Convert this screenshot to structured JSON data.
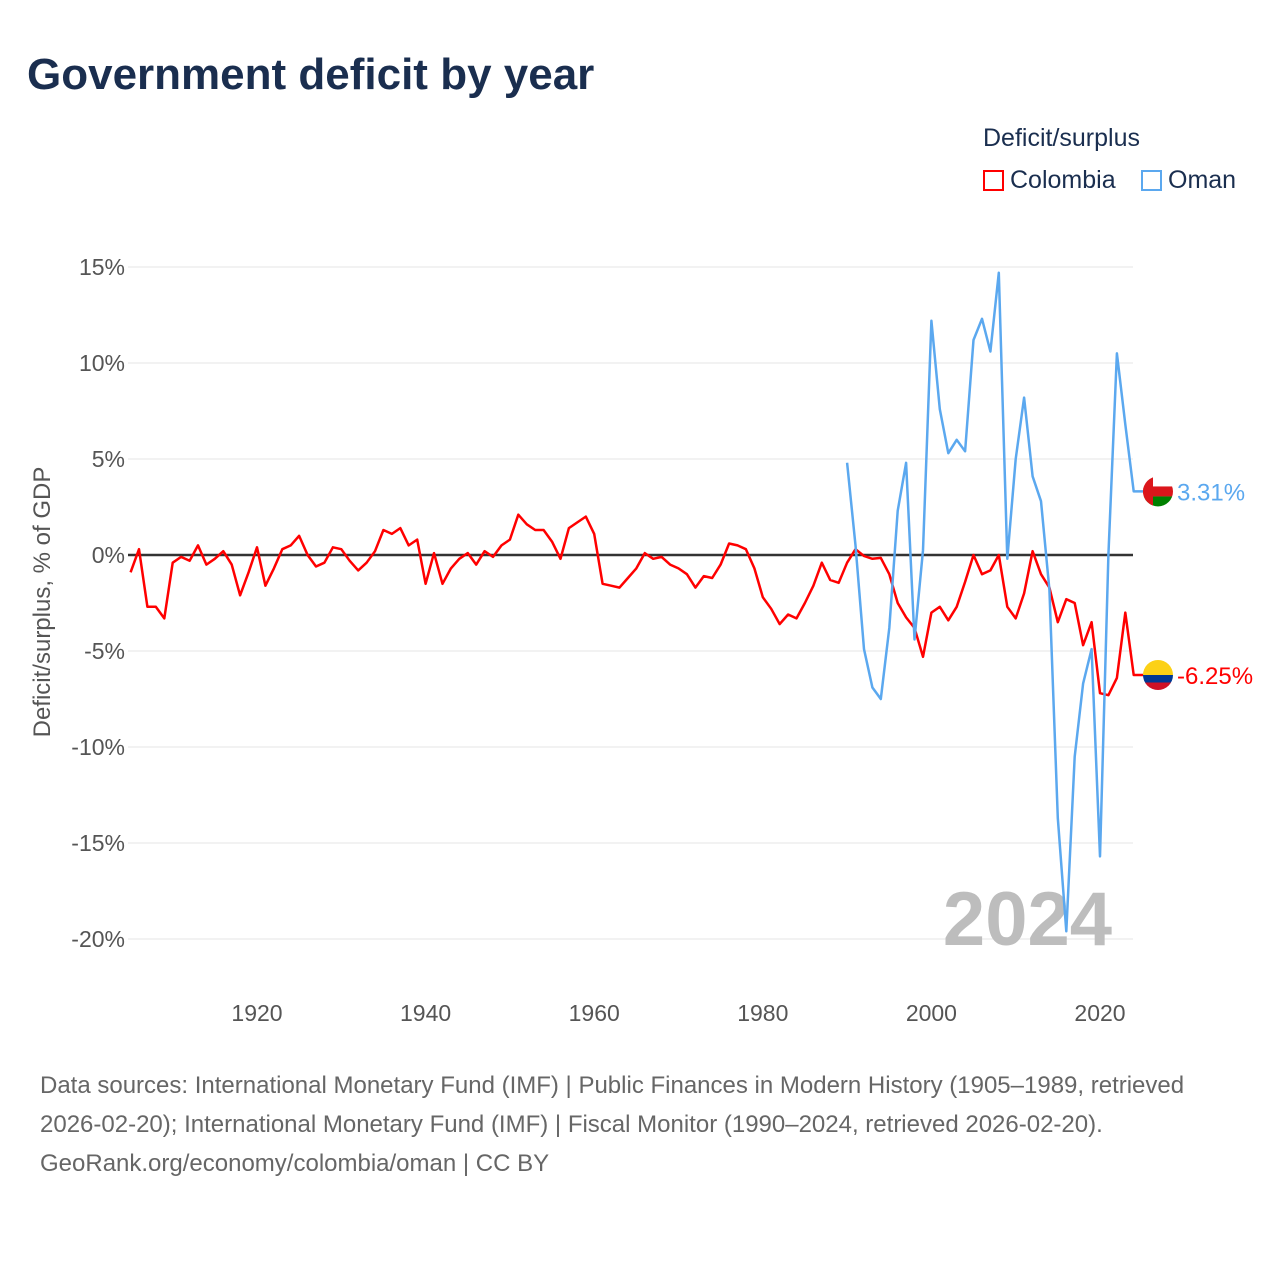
{
  "chart_data": {
    "type": "line",
    "title": "Government deficit by year",
    "xlabel": "",
    "ylabel": "Deficit/surplus, % of GDP",
    "ylim": [
      -20,
      15
    ],
    "xlim": [
      1905,
      2024
    ],
    "yticks": [
      15,
      10,
      5,
      0,
      -5,
      -10,
      -15,
      -20
    ],
    "ytick_labels": [
      "15%",
      "10%",
      "5%",
      "0%",
      "-5%",
      "-10%",
      "-15%",
      "-20%"
    ],
    "xticks": [
      1920,
      1940,
      1960,
      1980,
      2000,
      2020
    ],
    "xtick_labels": [
      "1920",
      "1940",
      "1960",
      "1980",
      "2000",
      "2020"
    ],
    "legend_title": "Deficit/surplus",
    "legend_position": "top-right",
    "year_watermark": "2024",
    "series": [
      {
        "name": "Colombia",
        "color": "#ff0000",
        "start_year": 1905,
        "end_label": "-6.25%",
        "values": [
          -0.9,
          0.3,
          -2.7,
          -2.7,
          -3.3,
          -0.4,
          -0.1,
          -0.3,
          0.5,
          -0.5,
          -0.2,
          0.2,
          -0.5,
          -2.1,
          -0.9,
          0.4,
          -1.6,
          -0.7,
          0.3,
          0.5,
          1.0,
          0,
          -0.6,
          -0.4,
          0.4,
          0.3,
          -0.3,
          -0.8,
          -0.4,
          0.2,
          1.3,
          1.1,
          1.4,
          0.5,
          0.8,
          -1.5,
          0.1,
          -1.5,
          -0.7,
          -0.2,
          0.1,
          -0.5,
          0.2,
          -0.1,
          0.5,
          0.8,
          2.1,
          1.6,
          1.3,
          1.3,
          0.7,
          -0.2,
          1.4,
          1.7,
          2.0,
          1.1,
          -1.5,
          -1.6,
          -1.7,
          -1.2,
          -0.7,
          0.1,
          -0.2,
          -0.1,
          -0.5,
          -0.7,
          -1.0,
          -1.7,
          -1.1,
          -1.2,
          -0.5,
          0.6,
          0.5,
          0.3,
          -0.7,
          -2.2,
          -2.8,
          -3.6,
          -3.1,
          -3.3,
          -2.5,
          -1.6,
          -0.4,
          -1.3,
          -1.45,
          -0.4,
          0.3,
          -0.05,
          -0.2,
          -0.15,
          -1.0,
          -2.5,
          -3.25,
          -3.8,
          -5.3,
          -3.0,
          -2.7,
          -3.4,
          -2.7,
          -1.4,
          0.0,
          -1.0,
          -0.8,
          0.0,
          -2.7,
          -3.3,
          -2.0,
          0.2,
          -1.0,
          -1.7,
          -3.5,
          -2.3,
          -2.5,
          -4.7,
          -3.5,
          -7.2,
          -7.3,
          -6.4,
          -3.0,
          -6.25
        ]
      },
      {
        "name": "Oman",
        "color": "#5ba8ef",
        "start_year": 1990,
        "end_label": "3.31%",
        "values": [
          4.8,
          0.5,
          -4.9,
          -6.9,
          -7.5,
          -3.8,
          2.3,
          4.8,
          -4.4,
          0.25,
          12.2,
          7.6,
          5.3,
          6.0,
          5.4,
          11.2,
          12.3,
          10.6,
          14.7,
          -0.2,
          5.0,
          8.2,
          4.1,
          2.8,
          -1.8,
          -13.7,
          -19.6,
          -10.5,
          -6.7,
          -4.9,
          -15.7,
          0.0,
          10.5,
          6.8,
          3.31
        ]
      }
    ]
  },
  "footer": {
    "sources": "Data sources: International Monetary Fund (IMF) | Public Finances in Modern History (1905–1989, retrieved 2026-02-20); International Monetary Fund (IMF) | Fiscal Monitor (1990–2024, retrieved 2026-02-20).",
    "credit": "GeoRank.org/economy/colombia/oman | CC BY"
  }
}
